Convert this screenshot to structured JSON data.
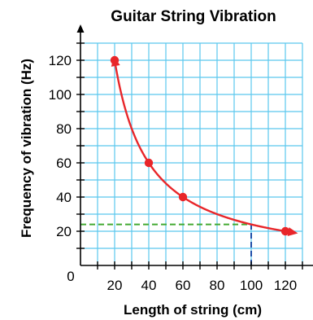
{
  "chart_data": {
    "type": "line",
    "title": "Guitar String Vibration",
    "xlabel": "Length of string (cm)",
    "ylabel": "Frequency of vibration (Hz)",
    "origin_label": "0",
    "xlim": [
      0,
      130
    ],
    "ylim": [
      0,
      130
    ],
    "x_ticks": [
      20,
      40,
      60,
      80,
      100,
      120
    ],
    "y_ticks": [
      20,
      40,
      60,
      80,
      100,
      120
    ],
    "grid": true,
    "series": [
      {
        "relation": "y = 2400 / x",
        "x_range": [
          20,
          125
        ]
      }
    ],
    "points": [
      {
        "x": 20,
        "y": 120
      },
      {
        "x": 40,
        "y": 60
      },
      {
        "x": 60,
        "y": 40
      },
      {
        "x": 120,
        "y": 20
      }
    ],
    "reference_lines": [
      {
        "type": "horizontal",
        "y": 24,
        "from_x": 0,
        "to_x": 100,
        "style": "dashed",
        "color": "#44aa33"
      },
      {
        "type": "vertical",
        "x": 100,
        "from_y": 0,
        "to_y": 24,
        "style": "dashed",
        "color": "#1f4fa8"
      }
    ],
    "colors": {
      "grid": "#5bc8ee",
      "curve": "#e8262a",
      "axis": "#000000"
    }
  }
}
